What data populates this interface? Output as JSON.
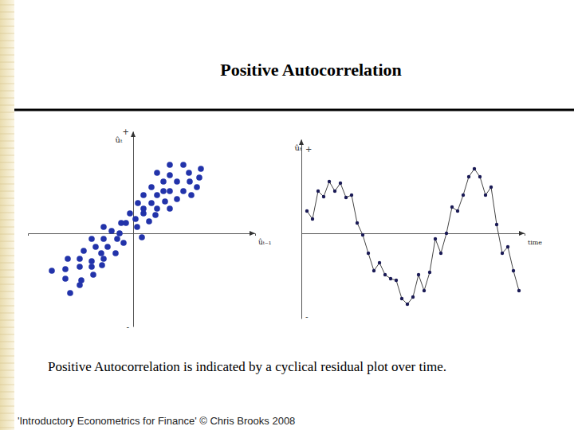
{
  "slide": {
    "title": "Positive Autocorrelation",
    "caption": "Positive Autocorrelation is indicated by a cyclical residual plot over time.",
    "footer": "'Introductory Econometrics for Finance' © Chris Brooks 2008"
  },
  "chart_data": [
    {
      "type": "scatter",
      "x_label": "ûₜ₋₁",
      "y_label": "ûₜ",
      "color": "#2233aa",
      "marker": "circle",
      "tick_labels": "y",
      "xlim": [
        -1.32,
        1.53
      ],
      "ylim": [
        -1.17,
        1.28
      ],
      "yticks": [
        {
          "value": -1.17,
          "label": "-"
        },
        {
          "value": 1.28,
          "label": "+"
        }
      ],
      "x": [
        0.46,
        0.63,
        0.3,
        0.46,
        0.7,
        0.85,
        0.38,
        0.55,
        0.71,
        0.83,
        0.23,
        0.38,
        0.46,
        0.63,
        0.8,
        0.13,
        0.3,
        0.55,
        0.73,
        0.06,
        0.23,
        0.4,
        0.13,
        0.3,
        0.46,
        -0.04,
        0.13,
        0.28,
        0.03,
        0.2,
        -0.15,
        -0.09,
        0.05,
        -0.37,
        -0.27,
        -0.17,
        -0.52,
        -0.37,
        -0.2,
        0.11,
        -0.47,
        -0.32,
        -0.12,
        -0.62,
        -0.4,
        -0.22,
        -0.82,
        -0.67,
        -0.52,
        -0.37,
        -1.02,
        -0.85,
        -0.67,
        -0.52,
        -0.39,
        -0.85,
        -0.65,
        -0.5,
        -0.79,
        -0.67
      ],
      "values": [
        0.86,
        0.86,
        0.76,
        0.73,
        0.76,
        0.81,
        0.65,
        0.65,
        0.65,
        0.7,
        0.58,
        0.53,
        0.53,
        0.53,
        0.58,
        0.48,
        0.48,
        0.43,
        0.48,
        0.38,
        0.38,
        0.4,
        0.31,
        0.31,
        0.31,
        0.25,
        0.25,
        0.23,
        0.18,
        0.15,
        0.13,
        0.13,
        0.08,
        0.08,
        0.03,
        0.0,
        -0.07,
        -0.07,
        -0.07,
        -0.05,
        -0.17,
        -0.17,
        -0.12,
        -0.22,
        -0.25,
        -0.25,
        -0.32,
        -0.32,
        -0.35,
        -0.32,
        -0.47,
        -0.45,
        -0.42,
        -0.42,
        -0.4,
        -0.57,
        -0.59,
        -0.52,
        -0.75,
        -0.65
      ]
    },
    {
      "type": "line",
      "x_label": "time",
      "y_label": "ûₜ",
      "color": "#1a1a55",
      "marker": "circle",
      "line_style": "solid",
      "tick_labels": "y",
      "xlim": [
        0,
        40
      ],
      "ylim": [
        -1.07,
        1.18
      ],
      "yticks": [
        {
          "value": -1.04,
          "label": "-"
        },
        {
          "value": 1.06,
          "label": "+"
        }
      ],
      "x": [
        1,
        2,
        3,
        4,
        5,
        6,
        7,
        8,
        9,
        10,
        11,
        12,
        13,
        14,
        15,
        16,
        17,
        18,
        19,
        20,
        21,
        22,
        23,
        24,
        25,
        26,
        27,
        28,
        29,
        30,
        31,
        32,
        33,
        34,
        35,
        36,
        37,
        38,
        39
      ],
      "values": [
        0.28,
        0.18,
        0.53,
        0.46,
        0.65,
        0.53,
        0.63,
        0.45,
        0.48,
        0.13,
        -0.02,
        -0.25,
        -0.47,
        -0.37,
        -0.52,
        -0.57,
        -0.59,
        -0.82,
        -0.89,
        -0.8,
        -0.52,
        -0.72,
        -0.49,
        -0.07,
        -0.25,
        0.0,
        0.33,
        0.28,
        0.48,
        0.71,
        0.81,
        0.71,
        0.48,
        0.58,
        0.11,
        -0.25,
        -0.17,
        -0.47,
        -0.72
      ]
    }
  ]
}
